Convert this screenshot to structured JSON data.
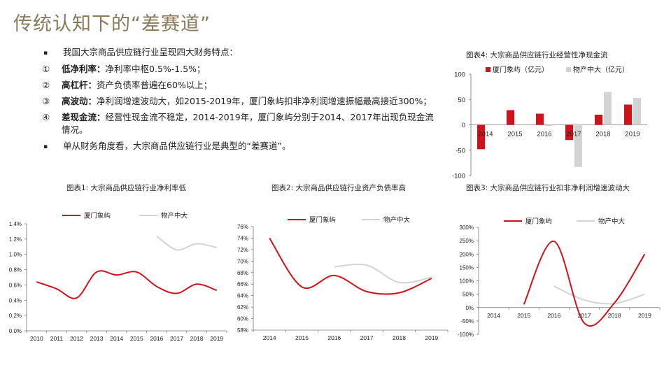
{
  "page": {
    "title": "传统认知下的“差赛道”",
    "bullets": [
      {
        "marker": "▪",
        "bold": "",
        "text": "我国大宗商品供应链行业呈现四大财务特点："
      },
      {
        "marker": "①",
        "bold": "低净利率：",
        "text": "净利率中枢0.5%-1.5%；"
      },
      {
        "marker": "②",
        "bold": "高杠杆：",
        "text": "资产负债率普遍在60%以上；"
      },
      {
        "marker": "③",
        "bold": "高波动：",
        "text": "净利润增速波动大，如2015-2019年，厦门象屿扣非净利润增速振幅最高接近300%；"
      },
      {
        "marker": "④",
        "bold": "差现金流：",
        "text": "经营性现金流不稳定，2014-2019年，厦门象屿分别于2014、2017年出现负现金流情况。"
      },
      {
        "marker": "▪",
        "bold": "",
        "text": "单从财务角度看，大宗商品供应链行业是典型的“差赛道”。"
      }
    ]
  },
  "colors": {
    "title": "#8b7a5a",
    "xiamen": "#d0121b",
    "wuchan": "#d3d3d3"
  },
  "chart_data": [
    {
      "id": "fig4",
      "type": "bar",
      "title": "图表4:  大宗商品供应链行业经营性净现金流",
      "categories": [
        "2014",
        "2015",
        "2016",
        "2017",
        "2018",
        "2019"
      ],
      "series": [
        {
          "name": "厦门象屿（亿元）",
          "values": [
            -48,
            29,
            22,
            -30,
            20,
            40
          ]
        },
        {
          "name": "物产中大（亿元）",
          "values": [
            0,
            0,
            -2,
            -83,
            65,
            53
          ]
        }
      ],
      "yticks": [
        "100",
        "50",
        "0",
        "-50",
        "-100"
      ],
      "ylim": [
        -100,
        100
      ],
      "legend": "top"
    },
    {
      "id": "fig1",
      "type": "line",
      "title": "图表1:  大宗商品供应链行业净利率低",
      "categories": [
        "2010",
        "2011",
        "2012",
        "2013",
        "2014",
        "2015",
        "2016",
        "2017",
        "2018",
        "2019"
      ],
      "series": [
        {
          "name": "厦门象屿",
          "values": [
            0.64,
            0.55,
            0.43,
            0.77,
            0.73,
            0.77,
            0.58,
            0.49,
            0.61,
            0.53
          ]
        },
        {
          "name": "物产中大",
          "values": [
            null,
            null,
            null,
            null,
            null,
            null,
            1.24,
            1.06,
            1.14,
            1.09
          ]
        }
      ],
      "yticks": [
        "1.4%",
        "1.2%",
        "1.0%",
        "0.8%",
        "0.6%",
        "0.4%",
        "0.2%",
        "0.0%"
      ],
      "ylim": [
        0,
        1.4
      ],
      "legend": "top"
    },
    {
      "id": "fig2",
      "type": "line",
      "title": "图表2:  大宗商品供应链行业资产负债率高",
      "categories": [
        "2014",
        "2015",
        "2016",
        "2017",
        "2018",
        "2019"
      ],
      "series": [
        {
          "name": "厦门象屿",
          "values": [
            74,
            65.5,
            67.5,
            64.7,
            64.5,
            67
          ]
        },
        {
          "name": "物产中大",
          "values": [
            null,
            null,
            69,
            69.3,
            66.3,
            67.2
          ]
        }
      ],
      "yticks": [
        "76%",
        "74%",
        "72%",
        "70%",
        "68%",
        "66%",
        "64%",
        "62%",
        "60%",
        "58%"
      ],
      "ylim": [
        58,
        76
      ],
      "legend": "top"
    },
    {
      "id": "fig3",
      "type": "line",
      "title": "图表3:  大宗商品供应链行业扣非净利润增速波动大",
      "categories": [
        "2014",
        "2015",
        "2016",
        "2017",
        "2018",
        "2019"
      ],
      "series": [
        {
          "name": "厦门象屿",
          "values": [
            null,
            12,
            248,
            -58,
            18,
            200
          ]
        },
        {
          "name": "物产中大",
          "values": [
            null,
            null,
            80,
            28,
            15,
            50
          ]
        }
      ],
      "yticks": [
        "300%",
        "250%",
        "200%",
        "150%",
        "100%",
        "50%",
        "0%",
        "-50%",
        "-100%"
      ],
      "ylim": [
        -100,
        300
      ],
      "legend": "top"
    }
  ]
}
